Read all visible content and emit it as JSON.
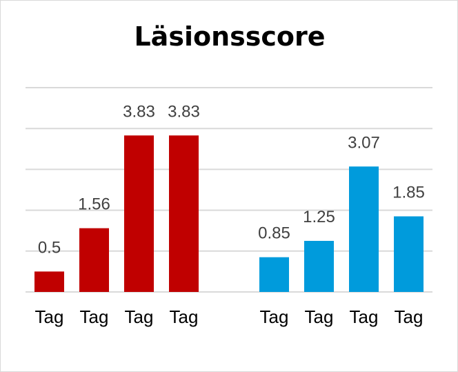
{
  "chart_data": {
    "type": "bar",
    "title": "Läsionsscore",
    "xlabel": "",
    "ylabel": "",
    "ylim": [
      0,
      5
    ],
    "grid": true,
    "groups": [
      {
        "color": "#c00000",
        "categories": [
          "Tag",
          "Tag",
          "Tag",
          "Tag"
        ],
        "values": [
          0.5,
          1.56,
          3.83,
          3.83
        ]
      },
      {
        "color": "#009bdc",
        "categories": [
          "Tag",
          "Tag",
          "Tag",
          "Tag"
        ],
        "values": [
          0.85,
          1.25,
          3.07,
          1.85
        ]
      }
    ]
  }
}
